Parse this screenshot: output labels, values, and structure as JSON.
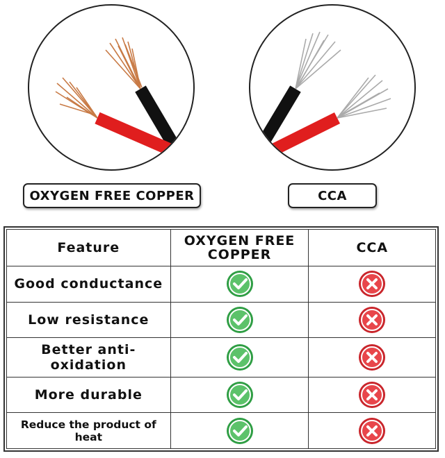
{
  "labels": {
    "left": "OXYGEN FREE COPPER",
    "right": "CCA"
  },
  "table": {
    "header": [
      "Feature",
      "OXYGEN FREE COPPER",
      "CCA"
    ],
    "rows": [
      "Good conductance",
      "Low resistance",
      "Better anti-oxidation",
      "More durable",
      "Reduce the product of heat"
    ]
  }
}
